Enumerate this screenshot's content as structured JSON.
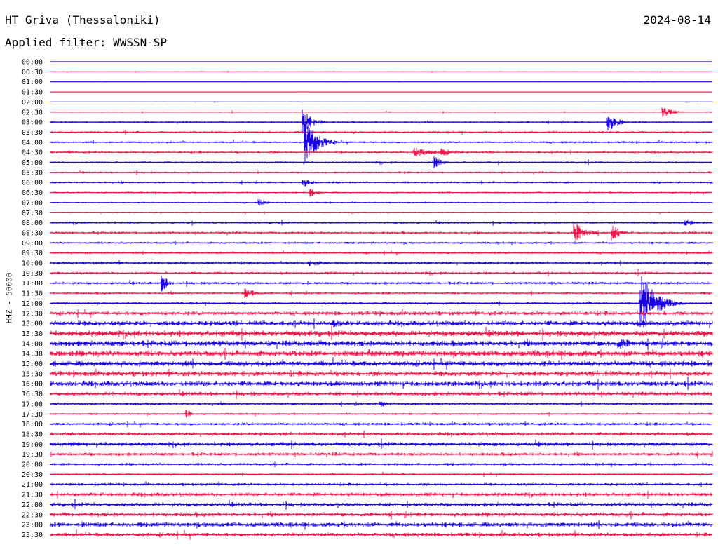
{
  "header": {
    "station": "HT Griva (Thessaloniki)",
    "date": "2024-08-14",
    "filter": "Applied filter: WWSSN-SP"
  },
  "chart_data": {
    "type": "line",
    "title": "HT Griva (Thessaloniki)",
    "subtitle": "Applied filter: WWSSN-SP",
    "date": "2024-08-14",
    "ylabel": "HHZ - 50000",
    "xlabel": "",
    "colors": [
      "#1a00e6",
      "#f0184a"
    ],
    "rows": [
      "00:00",
      "00:30",
      "01:00",
      "01:30",
      "02:00",
      "02:30",
      "03:00",
      "03:30",
      "04:00",
      "04:30",
      "05:00",
      "05:30",
      "06:00",
      "06:30",
      "07:00",
      "07:30",
      "08:00",
      "08:30",
      "09:00",
      "09:30",
      "10:00",
      "10:30",
      "11:00",
      "11:30",
      "12:00",
      "12:30",
      "13:00",
      "13:30",
      "14:00",
      "14:30",
      "15:00",
      "15:30",
      "16:00",
      "16:30",
      "17:00",
      "17:30",
      "18:00",
      "18:30",
      "19:00",
      "19:30",
      "20:00",
      "20:30",
      "21:00",
      "21:30",
      "22:00",
      "22:30",
      "23:00",
      "23:30"
    ],
    "noise_level": [
      0.2,
      0.6,
      0.3,
      0.3,
      0.5,
      0.7,
      1.1,
      1.3,
      1.3,
      1.3,
      1.3,
      1.2,
      1.3,
      1.1,
      1.0,
      0.9,
      1.3,
      1.6,
      1.4,
      1.3,
      1.6,
      1.6,
      1.6,
      1.5,
      1.5,
      2.4,
      3.0,
      3.4,
      3.4,
      3.6,
      3.2,
      3.0,
      3.0,
      2.4,
      1.6,
      1.3,
      1.7,
      2.2,
      2.4,
      2.0,
      1.6,
      1.2,
      1.7,
      2.2,
      2.4,
      2.6,
      2.8,
      2.5
    ],
    "events": [
      {
        "row": 6,
        "time_min": 11.5,
        "amp": 18,
        "dur_min": 1.2
      },
      {
        "row": 6,
        "time_min": 25.3,
        "amp": 14,
        "dur_min": 1.2
      },
      {
        "row": 5,
        "time_min": 27.8,
        "amp": 8,
        "dur_min": 1.2
      },
      {
        "row": 8,
        "time_min": 11.6,
        "amp": 30,
        "dur_min": 1.5
      },
      {
        "row": 9,
        "time_min": 16.5,
        "amp": 7,
        "dur_min": 2.5
      },
      {
        "row": 9,
        "time_min": 17.8,
        "amp": 6,
        "dur_min": 1.5
      },
      {
        "row": 10,
        "time_min": 17.4,
        "amp": 9,
        "dur_min": 1.0
      },
      {
        "row": 12,
        "time_min": 11.5,
        "amp": 6,
        "dur_min": 1.2
      },
      {
        "row": 13,
        "time_min": 11.8,
        "amp": 6,
        "dur_min": 1.0
      },
      {
        "row": 14,
        "time_min": 9.5,
        "amp": 5,
        "dur_min": 1.0
      },
      {
        "row": 16,
        "time_min": 28.8,
        "amp": 6,
        "dur_min": 1.2
      },
      {
        "row": 17,
        "time_min": 23.8,
        "amp": 14,
        "dur_min": 1.6
      },
      {
        "row": 17,
        "time_min": 25.5,
        "amp": 12,
        "dur_min": 1.0
      },
      {
        "row": 20,
        "time_min": 11.8,
        "amp": 5,
        "dur_min": 2.0
      },
      {
        "row": 22,
        "time_min": 5.1,
        "amp": 12,
        "dur_min": 0.8
      },
      {
        "row": 23,
        "time_min": 8.9,
        "amp": 7,
        "dur_min": 1.5
      },
      {
        "row": 24,
        "time_min": 26.8,
        "amp": 40,
        "dur_min": 2.0
      },
      {
        "row": 26,
        "time_min": 12.9,
        "amp": 7,
        "dur_min": 1.5
      },
      {
        "row": 28,
        "time_min": 25.8,
        "amp": 8,
        "dur_min": 2.5
      },
      {
        "row": 29,
        "time_min": 14.5,
        "amp": 7,
        "dur_min": 2.0
      },
      {
        "row": 35,
        "time_min": 6.2,
        "amp": 6,
        "dur_min": 0.8
      },
      {
        "row": 34,
        "time_min": 15.0,
        "amp": 5,
        "dur_min": 1.5
      },
      {
        "row": 46,
        "time_min": 1.5,
        "amp": 5,
        "dur_min": 1.0
      }
    ]
  }
}
